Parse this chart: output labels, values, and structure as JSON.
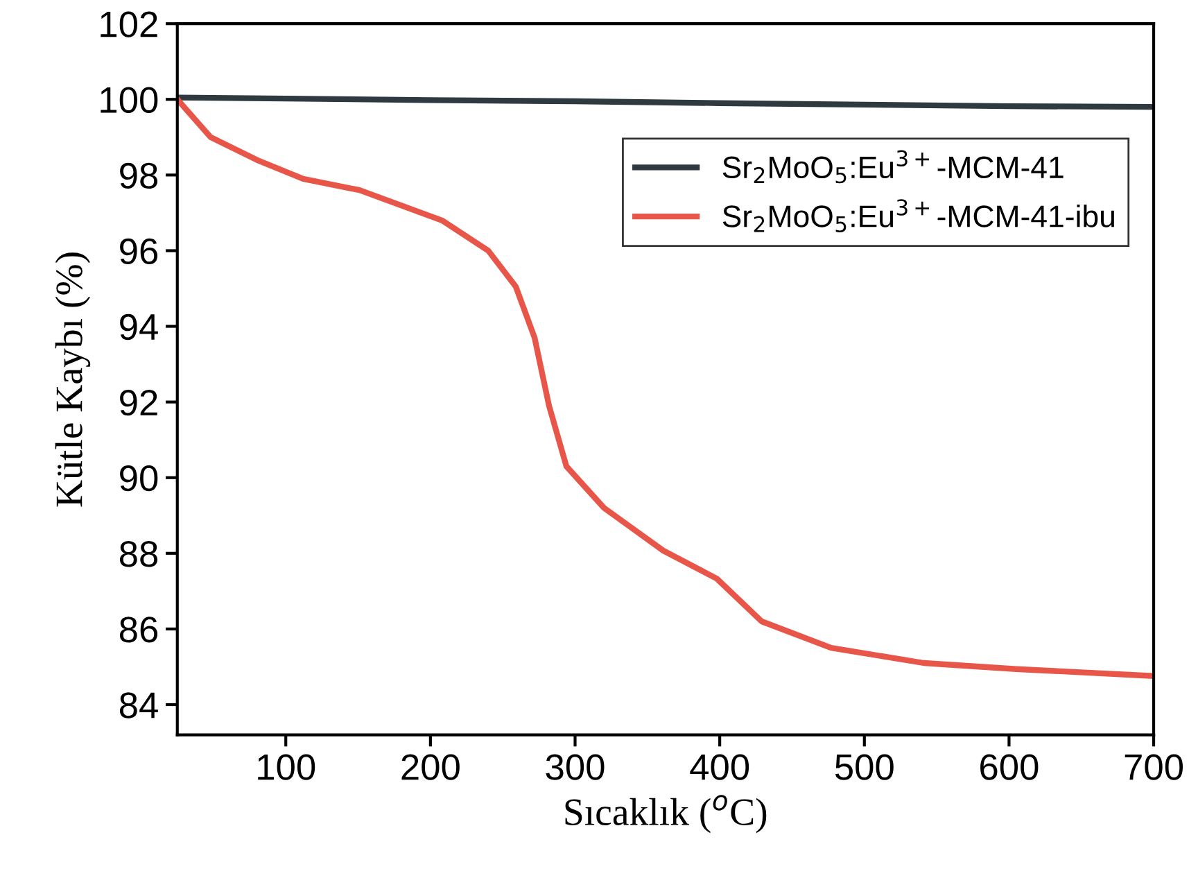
{
  "chart_data": {
    "type": "line",
    "xlabel": "Sıcaklık ($^{o}$C)",
    "ylabel": "Kütle Kaybı (%)",
    "xlim": [
      25,
      700
    ],
    "ylim": [
      83.2,
      102
    ],
    "xticks": [
      100,
      200,
      300,
      400,
      500,
      600,
      700
    ],
    "yticks": [
      84,
      86,
      88,
      90,
      92,
      94,
      96,
      98,
      100,
      102
    ],
    "grid": false,
    "legend": "top right",
    "line_style": "solid",
    "marker": "none",
    "series": [
      {
        "name": "Sr$_{2}$MoO$_{5}$:Eu$^{3+}$-MCM-41",
        "color": "#2e3a3f",
        "x": [
          25,
          100,
          200,
          300,
          400,
          500,
          600,
          700
        ],
        "values": [
          100.05,
          100.02,
          99.98,
          99.95,
          99.9,
          99.86,
          99.82,
          99.8
        ]
      },
      {
        "name": "Sr$_{2}$MoO$_{5}$:Eu$^{3+}$-MCM-41-ibu",
        "color": "#e8564a",
        "x": [
          25,
          48,
          80,
          112,
          151,
          208,
          240,
          259,
          272,
          282,
          294,
          320,
          361,
          398,
          429,
          477,
          541,
          605,
          698
        ],
        "values": [
          100.0,
          99.0,
          98.4,
          97.9,
          97.6,
          96.8,
          96.0,
          95.05,
          93.7,
          91.9,
          90.3,
          89.2,
          88.07,
          87.33,
          86.2,
          85.5,
          85.1,
          84.94,
          84.76
        ]
      }
    ]
  }
}
